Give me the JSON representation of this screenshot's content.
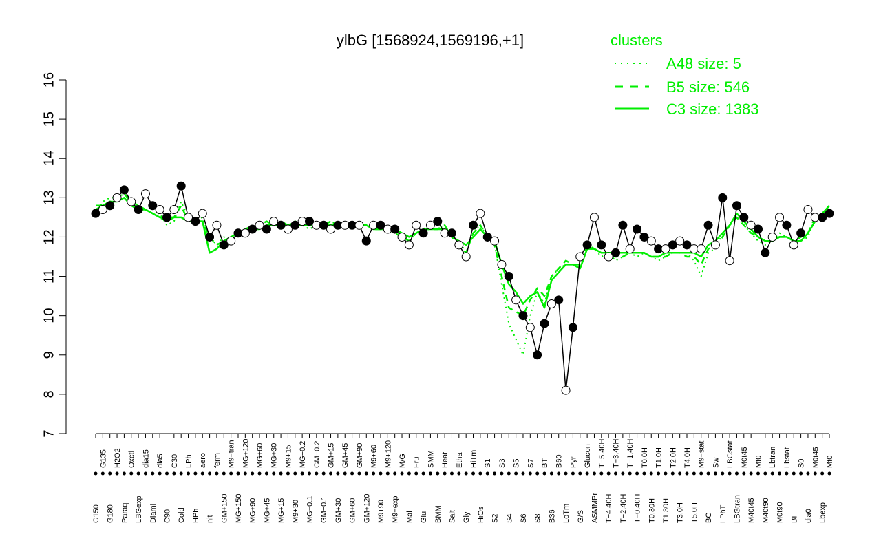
{
  "chart_data": {
    "type": "line",
    "title": "ylbG [1568924,1569196,+1]",
    "xlabel": "",
    "ylabel": "",
    "ylim": [
      7,
      16
    ],
    "yticks": [
      7,
      8,
      9,
      10,
      11,
      12,
      13,
      14,
      15,
      16
    ],
    "grid": false,
    "legend": {
      "position": "top-right",
      "title": "clusters",
      "entries": [
        {
          "label": "A48 size: 5",
          "style": "dotted"
        },
        {
          "label": "B5 size: 546",
          "style": "dashed"
        },
        {
          "label": "C3 size: 1383",
          "style": "solid"
        }
      ]
    },
    "x_tick_labels": [
      "G150",
      "G135",
      "G180",
      "H2O2",
      "Paraq",
      "Oxctl",
      "LBGexp",
      "dia15",
      "Diami",
      "dia5",
      "C90",
      "C30",
      "Cold",
      "LPh",
      "HPh",
      "aero",
      "nit",
      "ferm",
      "GM+150",
      "M9−tran",
      "MG+150",
      "MG+120",
      "MG+90",
      "MG+60",
      "MG+45",
      "MG+30",
      "MG+15",
      "M9+15",
      "M9+30",
      "MG−0.2",
      "MG−0.1",
      "GM−0.2",
      "GM−0.1",
      "GM+15",
      "GM+30",
      "GM+45",
      "GM+60",
      "GM+90",
      "GM+120",
      "M9+60",
      "M9+90",
      "M9+120",
      "M9−exp",
      "M/G",
      "Mal",
      "Fru",
      "Glu",
      "SMM",
      "BMM",
      "Heat",
      "Salt",
      "Etha",
      "Gly",
      "HiTm",
      "HiOs",
      "S1",
      "S2",
      "S3",
      "S4",
      "S5",
      "S6",
      "S7",
      "S8",
      "BT",
      "B36",
      "B60",
      "LoTm",
      "Pyr",
      "G/S",
      "Glucon",
      "ASMMPr",
      "T−5.40H",
      "T−4.40H",
      "T−3.40H",
      "T−2.40H",
      "T−1.40H",
      "T−0.40H",
      "T0.0H",
      "T0.30H",
      "T1.0H",
      "T1.30H",
      "T2.0H",
      "T3.0H",
      "T4.0H",
      "T5.0H",
      "M9−stat",
      "BC",
      "Sw",
      "LPhT",
      "LBGstat",
      "LBGtran",
      "M0t45",
      "M40t45",
      "Mt0",
      "M40t90",
      "Lbtran",
      "M0t90",
      "Lbstat",
      "BI",
      "S0",
      "dia0",
      "M0t45",
      "Lbexp",
      "Mt0"
    ],
    "series": [
      {
        "name": "A48 size: 5",
        "values": [
          12.6,
          12.9,
          13.0,
          13.0,
          13.1,
          12.9,
          12.8,
          12.7,
          12.6,
          12.6,
          12.3,
          12.4,
          12.9,
          12.5,
          12.4,
          12.5,
          12.0,
          11.8,
          12.0,
          11.9,
          12.1,
          12.2,
          12.3,
          12.3,
          12.4,
          12.3,
          12.4,
          12.3,
          12.4,
          12.3,
          12.2,
          12.3,
          12.3,
          12.4,
          12.3,
          12.3,
          12.2,
          12.3,
          12.3,
          12.2,
          12.3,
          12.2,
          12.1,
          12.1,
          11.9,
          12.1,
          12.2,
          12.3,
          12.2,
          12.3,
          12.0,
          11.9,
          11.6,
          12.1,
          12.3,
          12.0,
          11.8,
          10.8,
          9.8,
          9.4,
          9.0,
          10.0,
          10.6,
          10.3,
          11.0,
          11.2,
          11.3,
          11.3,
          11.2,
          11.7,
          11.7,
          11.5,
          11.6,
          11.4,
          11.5,
          11.6,
          11.5,
          11.6,
          11.5,
          11.4,
          11.5,
          11.6,
          11.6,
          11.6,
          11.4,
          11.0,
          11.6,
          11.7,
          12.1,
          12.3,
          12.5,
          12.3,
          12.1,
          11.9,
          11.8,
          11.9,
          12.1,
          12.0,
          11.9,
          11.9,
          12.0,
          12.5,
          12.6,
          12.7
        ]
      },
      {
        "name": "B5 size: 546",
        "values": [
          12.7,
          12.8,
          12.9,
          13.0,
          13.1,
          12.9,
          12.8,
          12.7,
          12.6,
          12.5,
          12.4,
          12.5,
          12.8,
          12.4,
          12.4,
          12.4,
          12.0,
          11.8,
          11.9,
          11.9,
          12.1,
          12.2,
          12.2,
          12.3,
          12.4,
          12.3,
          12.4,
          12.3,
          12.4,
          12.3,
          12.3,
          12.3,
          12.3,
          12.4,
          12.3,
          12.3,
          12.2,
          12.3,
          12.3,
          12.2,
          12.2,
          12.2,
          12.1,
          12.0,
          11.9,
          12.1,
          12.2,
          12.2,
          12.2,
          12.3,
          12.0,
          11.8,
          11.6,
          12.1,
          12.3,
          12.0,
          11.8,
          11.0,
          10.2,
          10.1,
          10.0,
          10.4,
          10.7,
          10.5,
          11.0,
          11.2,
          11.4,
          11.3,
          11.3,
          11.8,
          11.7,
          11.6,
          11.6,
          11.5,
          11.5,
          11.6,
          11.6,
          11.6,
          11.5,
          11.5,
          11.5,
          11.6,
          11.6,
          11.5,
          11.5,
          11.3,
          11.7,
          11.8,
          12.0,
          12.3,
          12.5,
          12.3,
          12.1,
          12.0,
          11.9,
          11.9,
          12.0,
          12.0,
          11.9,
          12.0,
          12.1,
          12.5,
          12.6,
          12.8
        ]
      },
      {
        "name": "C3 size: 1383",
        "values": [
          12.8,
          12.8,
          12.9,
          12.9,
          13.0,
          12.8,
          12.7,
          12.7,
          12.6,
          12.5,
          12.5,
          12.5,
          12.5,
          12.4,
          12.4,
          12.4,
          11.6,
          11.7,
          11.9,
          12.0,
          12.1,
          12.1,
          12.2,
          12.2,
          12.3,
          12.3,
          12.3,
          12.3,
          12.3,
          12.3,
          12.3,
          12.3,
          12.3,
          12.3,
          12.3,
          12.3,
          12.3,
          12.3,
          12.3,
          12.2,
          12.2,
          12.2,
          12.2,
          12.1,
          12.0,
          12.1,
          12.2,
          12.2,
          12.2,
          12.2,
          12.0,
          11.9,
          11.8,
          12.0,
          12.2,
          12.0,
          11.9,
          11.3,
          10.8,
          10.6,
          10.3,
          10.5,
          10.6,
          10.2,
          10.9,
          11.1,
          11.3,
          11.3,
          11.2,
          11.7,
          11.7,
          11.6,
          11.6,
          11.6,
          11.6,
          11.6,
          11.6,
          11.6,
          11.5,
          11.5,
          11.6,
          11.6,
          11.6,
          11.6,
          11.6,
          11.5,
          11.8,
          11.9,
          12.1,
          12.3,
          12.6,
          12.4,
          12.2,
          12.0,
          11.9,
          11.9,
          12.0,
          12.0,
          11.9,
          11.9,
          12.1,
          12.4,
          12.6,
          12.8
        ]
      }
    ],
    "points": [
      {
        "x": 0,
        "y": 12.6,
        "filled": true
      },
      {
        "x": 1,
        "y": 12.7,
        "filled": false
      },
      {
        "x": 2,
        "y": 12.8,
        "filled": true
      },
      {
        "x": 3,
        "y": 13.0,
        "filled": false
      },
      {
        "x": 4,
        "y": 13.2,
        "filled": true
      },
      {
        "x": 5,
        "y": 12.9,
        "filled": false
      },
      {
        "x": 6,
        "y": 12.7,
        "filled": true
      },
      {
        "x": 7,
        "y": 13.1,
        "filled": false
      },
      {
        "x": 8,
        "y": 12.8,
        "filled": true
      },
      {
        "x": 9,
        "y": 12.7,
        "filled": false
      },
      {
        "x": 10,
        "y": 12.5,
        "filled": true
      },
      {
        "x": 11,
        "y": 12.7,
        "filled": false
      },
      {
        "x": 12,
        "y": 13.3,
        "filled": true
      },
      {
        "x": 13,
        "y": 12.5,
        "filled": false
      },
      {
        "x": 14,
        "y": 12.4,
        "filled": true
      },
      {
        "x": 15,
        "y": 12.6,
        "filled": false
      },
      {
        "x": 16,
        "y": 12.0,
        "filled": true
      },
      {
        "x": 17,
        "y": 12.3,
        "filled": false
      },
      {
        "x": 18,
        "y": 11.8,
        "filled": true
      },
      {
        "x": 19,
        "y": 11.9,
        "filled": false
      },
      {
        "x": 20,
        "y": 12.1,
        "filled": true
      },
      {
        "x": 21,
        "y": 12.1,
        "filled": false
      },
      {
        "x": 22,
        "y": 12.2,
        "filled": true
      },
      {
        "x": 23,
        "y": 12.3,
        "filled": false
      },
      {
        "x": 24,
        "y": 12.2,
        "filled": true
      },
      {
        "x": 25,
        "y": 12.4,
        "filled": false
      },
      {
        "x": 26,
        "y": 12.3,
        "filled": true
      },
      {
        "x": 27,
        "y": 12.2,
        "filled": false
      },
      {
        "x": 28,
        "y": 12.3,
        "filled": true
      },
      {
        "x": 29,
        "y": 12.4,
        "filled": false
      },
      {
        "x": 30,
        "y": 12.4,
        "filled": true
      },
      {
        "x": 31,
        "y": 12.3,
        "filled": false
      },
      {
        "x": 32,
        "y": 12.3,
        "filled": true
      },
      {
        "x": 33,
        "y": 12.2,
        "filled": false
      },
      {
        "x": 34,
        "y": 12.3,
        "filled": true
      },
      {
        "x": 35,
        "y": 12.3,
        "filled": false
      },
      {
        "x": 36,
        "y": 12.3,
        "filled": true
      },
      {
        "x": 37,
        "y": 12.3,
        "filled": false
      },
      {
        "x": 38,
        "y": 11.9,
        "filled": true
      },
      {
        "x": 39,
        "y": 12.3,
        "filled": false
      },
      {
        "x": 40,
        "y": 12.3,
        "filled": true
      },
      {
        "x": 41,
        "y": 12.2,
        "filled": false
      },
      {
        "x": 42,
        "y": 12.2,
        "filled": true
      },
      {
        "x": 43,
        "y": 12.0,
        "filled": false
      },
      {
        "x": 44,
        "y": 11.8,
        "filled": false
      },
      {
        "x": 45,
        "y": 12.3,
        "filled": false
      },
      {
        "x": 46,
        "y": 12.1,
        "filled": true
      },
      {
        "x": 47,
        "y": 12.3,
        "filled": false
      },
      {
        "x": 48,
        "y": 12.4,
        "filled": true
      },
      {
        "x": 49,
        "y": 12.1,
        "filled": false
      },
      {
        "x": 50,
        "y": 12.1,
        "filled": true
      },
      {
        "x": 51,
        "y": 11.8,
        "filled": false
      },
      {
        "x": 52,
        "y": 11.5,
        "filled": false
      },
      {
        "x": 53,
        "y": 12.3,
        "filled": true
      },
      {
        "x": 54,
        "y": 12.6,
        "filled": false
      },
      {
        "x": 55,
        "y": 12.0,
        "filled": true
      },
      {
        "x": 56,
        "y": 11.9,
        "filled": false
      },
      {
        "x": 57,
        "y": 11.3,
        "filled": false
      },
      {
        "x": 58,
        "y": 11.0,
        "filled": true
      },
      {
        "x": 59,
        "y": 10.4,
        "filled": false
      },
      {
        "x": 60,
        "y": 10.0,
        "filled": true
      },
      {
        "x": 61,
        "y": 9.7,
        "filled": false
      },
      {
        "x": 62,
        "y": 9.0,
        "filled": true
      },
      {
        "x": 63,
        "y": 9.8,
        "filled": true
      },
      {
        "x": 64,
        "y": 10.3,
        "filled": false
      },
      {
        "x": 65,
        "y": 10.4,
        "filled": true
      },
      {
        "x": 66,
        "y": 8.1,
        "filled": false
      },
      {
        "x": 67,
        "y": 9.7,
        "filled": true
      },
      {
        "x": 68,
        "y": 11.5,
        "filled": false
      },
      {
        "x": 69,
        "y": 11.8,
        "filled": true
      },
      {
        "x": 70,
        "y": 12.5,
        "filled": false
      },
      {
        "x": 71,
        "y": 11.8,
        "filled": true
      },
      {
        "x": 72,
        "y": 11.5,
        "filled": false
      },
      {
        "x": 73,
        "y": 11.6,
        "filled": true
      },
      {
        "x": 74,
        "y": 12.3,
        "filled": true
      },
      {
        "x": 75,
        "y": 11.7,
        "filled": false
      },
      {
        "x": 76,
        "y": 12.2,
        "filled": true
      },
      {
        "x": 77,
        "y": 12.0,
        "filled": true
      },
      {
        "x": 78,
        "y": 11.9,
        "filled": false
      },
      {
        "x": 79,
        "y": 11.7,
        "filled": true
      },
      {
        "x": 80,
        "y": 11.7,
        "filled": false
      },
      {
        "x": 81,
        "y": 11.8,
        "filled": true
      },
      {
        "x": 82,
        "y": 11.9,
        "filled": false
      },
      {
        "x": 83,
        "y": 11.8,
        "filled": true
      },
      {
        "x": 84,
        "y": 11.7,
        "filled": false
      },
      {
        "x": 85,
        "y": 11.7,
        "filled": false
      },
      {
        "x": 86,
        "y": 12.3,
        "filled": true
      },
      {
        "x": 87,
        "y": 11.8,
        "filled": false
      },
      {
        "x": 88,
        "y": 13.0,
        "filled": true
      },
      {
        "x": 89,
        "y": 11.4,
        "filled": false
      },
      {
        "x": 90,
        "y": 12.8,
        "filled": true
      },
      {
        "x": 91,
        "y": 12.5,
        "filled": true
      },
      {
        "x": 92,
        "y": 12.3,
        "filled": false
      },
      {
        "x": 93,
        "y": 12.2,
        "filled": true
      },
      {
        "x": 94,
        "y": 11.6,
        "filled": true
      },
      {
        "x": 95,
        "y": 12.0,
        "filled": false
      },
      {
        "x": 96,
        "y": 12.5,
        "filled": false
      },
      {
        "x": 97,
        "y": 12.3,
        "filled": true
      },
      {
        "x": 98,
        "y": 11.8,
        "filled": false
      },
      {
        "x": 99,
        "y": 12.1,
        "filled": true
      },
      {
        "x": 100,
        "y": 12.7,
        "filled": false
      },
      {
        "x": 101,
        "y": 12.5,
        "filled": false
      },
      {
        "x": 102,
        "y": 12.5,
        "filled": true
      },
      {
        "x": 103,
        "y": 12.6,
        "filled": true
      }
    ]
  },
  "colors": {
    "series": "#00ee00",
    "axis": "#000000",
    "point_fill": "#000000",
    "point_open": "#ffffff"
  }
}
